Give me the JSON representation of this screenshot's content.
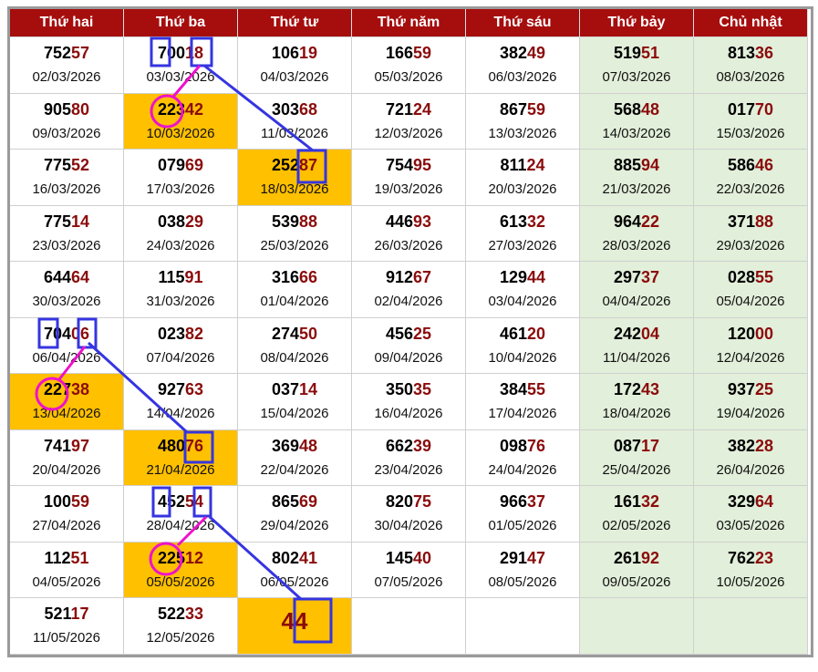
{
  "header": {
    "days": [
      "Thứ hai",
      "Thứ ba",
      "Thứ tư",
      "Thứ năm",
      "Thứ sáu",
      "Thứ bảy",
      "Chủ nhật"
    ]
  },
  "table": {
    "rows": [
      [
        {
          "prefix": "752",
          "suffix": "57",
          "date": "02/03/2026"
        },
        {
          "prefix": "700",
          "suffix": "18",
          "date": "03/03/2026"
        },
        {
          "prefix": "106",
          "suffix": "19",
          "date": "04/03/2026"
        },
        {
          "prefix": "166",
          "suffix": "59",
          "date": "05/03/2026"
        },
        {
          "prefix": "382",
          "suffix": "49",
          "date": "06/03/2026"
        },
        {
          "prefix": "519",
          "suffix": "51",
          "date": "07/03/2026"
        },
        {
          "prefix": "813",
          "suffix": "36",
          "date": "08/03/2026"
        }
      ],
      [
        {
          "prefix": "905",
          "suffix": "80",
          "date": "09/03/2026"
        },
        {
          "prefix": "223",
          "suffix": "42",
          "date": "10/03/2026"
        },
        {
          "prefix": "303",
          "suffix": "68",
          "date": "11/03/2026"
        },
        {
          "prefix": "721",
          "suffix": "24",
          "date": "12/03/2026"
        },
        {
          "prefix": "867",
          "suffix": "59",
          "date": "13/03/2026"
        },
        {
          "prefix": "568",
          "suffix": "48",
          "date": "14/03/2026"
        },
        {
          "prefix": "017",
          "suffix": "70",
          "date": "15/03/2026"
        }
      ],
      [
        {
          "prefix": "775",
          "suffix": "52",
          "date": "16/03/2026"
        },
        {
          "prefix": "079",
          "suffix": "69",
          "date": "17/03/2026"
        },
        {
          "prefix": "252",
          "suffix": "87",
          "date": "18/03/2026"
        },
        {
          "prefix": "754",
          "suffix": "95",
          "date": "19/03/2026"
        },
        {
          "prefix": "811",
          "suffix": "24",
          "date": "20/03/2026"
        },
        {
          "prefix": "885",
          "suffix": "94",
          "date": "21/03/2026"
        },
        {
          "prefix": "586",
          "suffix": "46",
          "date": "22/03/2026"
        }
      ],
      [
        {
          "prefix": "775",
          "suffix": "14",
          "date": "23/03/2026"
        },
        {
          "prefix": "038",
          "suffix": "29",
          "date": "24/03/2026"
        },
        {
          "prefix": "539",
          "suffix": "88",
          "date": "25/03/2026"
        },
        {
          "prefix": "446",
          "suffix": "93",
          "date": "26/03/2026"
        },
        {
          "prefix": "613",
          "suffix": "32",
          "date": "27/03/2026"
        },
        {
          "prefix": "964",
          "suffix": "22",
          "date": "28/03/2026"
        },
        {
          "prefix": "371",
          "suffix": "88",
          "date": "29/03/2026"
        }
      ],
      [
        {
          "prefix": "644",
          "suffix": "64",
          "date": "30/03/2026"
        },
        {
          "prefix": "115",
          "suffix": "91",
          "date": "31/03/2026"
        },
        {
          "prefix": "316",
          "suffix": "66",
          "date": "01/04/2026"
        },
        {
          "prefix": "912",
          "suffix": "67",
          "date": "02/04/2026"
        },
        {
          "prefix": "129",
          "suffix": "44",
          "date": "03/04/2026"
        },
        {
          "prefix": "297",
          "suffix": "37",
          "date": "04/04/2026"
        },
        {
          "prefix": "028",
          "suffix": "55",
          "date": "05/04/2026"
        }
      ],
      [
        {
          "prefix": "704",
          "suffix": "06",
          "date": "06/04/2026"
        },
        {
          "prefix": "023",
          "suffix": "82",
          "date": "07/04/2026"
        },
        {
          "prefix": "274",
          "suffix": "50",
          "date": "08/04/2026"
        },
        {
          "prefix": "456",
          "suffix": "25",
          "date": "09/04/2026"
        },
        {
          "prefix": "461",
          "suffix": "20",
          "date": "10/04/2026"
        },
        {
          "prefix": "242",
          "suffix": "04",
          "date": "11/04/2026"
        },
        {
          "prefix": "120",
          "suffix": "00",
          "date": "12/04/2026"
        }
      ],
      [
        {
          "prefix": "227",
          "suffix": "38",
          "date": "13/04/2026"
        },
        {
          "prefix": "927",
          "suffix": "63",
          "date": "14/04/2026"
        },
        {
          "prefix": "037",
          "suffix": "14",
          "date": "15/04/2026"
        },
        {
          "prefix": "350",
          "suffix": "35",
          "date": "16/04/2026"
        },
        {
          "prefix": "384",
          "suffix": "55",
          "date": "17/04/2026"
        },
        {
          "prefix": "172",
          "suffix": "43",
          "date": "18/04/2026"
        },
        {
          "prefix": "937",
          "suffix": "25",
          "date": "19/04/2026"
        }
      ],
      [
        {
          "prefix": "741",
          "suffix": "97",
          "date": "20/04/2026"
        },
        {
          "prefix": "480",
          "suffix": "76",
          "date": "21/04/2026"
        },
        {
          "prefix": "369",
          "suffix": "48",
          "date": "22/04/2026"
        },
        {
          "prefix": "662",
          "suffix": "39",
          "date": "23/04/2026"
        },
        {
          "prefix": "098",
          "suffix": "76",
          "date": "24/04/2026"
        },
        {
          "prefix": "087",
          "suffix": "17",
          "date": "25/04/2026"
        },
        {
          "prefix": "382",
          "suffix": "28",
          "date": "26/04/2026"
        }
      ],
      [
        {
          "prefix": "100",
          "suffix": "59",
          "date": "27/04/2026"
        },
        {
          "prefix": "452",
          "suffix": "54",
          "date": "28/04/2026"
        },
        {
          "prefix": "865",
          "suffix": "69",
          "date": "29/04/2026"
        },
        {
          "prefix": "820",
          "suffix": "75",
          "date": "30/04/2026"
        },
        {
          "prefix": "966",
          "suffix": "37",
          "date": "01/05/2026"
        },
        {
          "prefix": "161",
          "suffix": "32",
          "date": "02/05/2026"
        },
        {
          "prefix": "329",
          "suffix": "64",
          "date": "03/05/2026"
        }
      ],
      [
        {
          "prefix": "112",
          "suffix": "51",
          "date": "04/05/2026"
        },
        {
          "prefix": "225",
          "suffix": "12",
          "date": "05/05/2026"
        },
        {
          "prefix": "802",
          "suffix": "41",
          "date": "06/05/2026"
        },
        {
          "prefix": "145",
          "suffix": "40",
          "date": "07/05/2026"
        },
        {
          "prefix": "291",
          "suffix": "47",
          "date": "08/05/2026"
        },
        {
          "prefix": "261",
          "suffix": "92",
          "date": "09/05/2026"
        },
        {
          "prefix": "762",
          "suffix": "23",
          "date": "10/05/2026"
        }
      ],
      [
        {
          "prefix": "521",
          "suffix": "17",
          "date": "11/05/2026"
        },
        {
          "prefix": "522",
          "suffix": "33",
          "date": "12/05/2026"
        },
        {
          "suffix": "44"
        },
        null,
        null,
        null,
        null
      ]
    ]
  }
}
